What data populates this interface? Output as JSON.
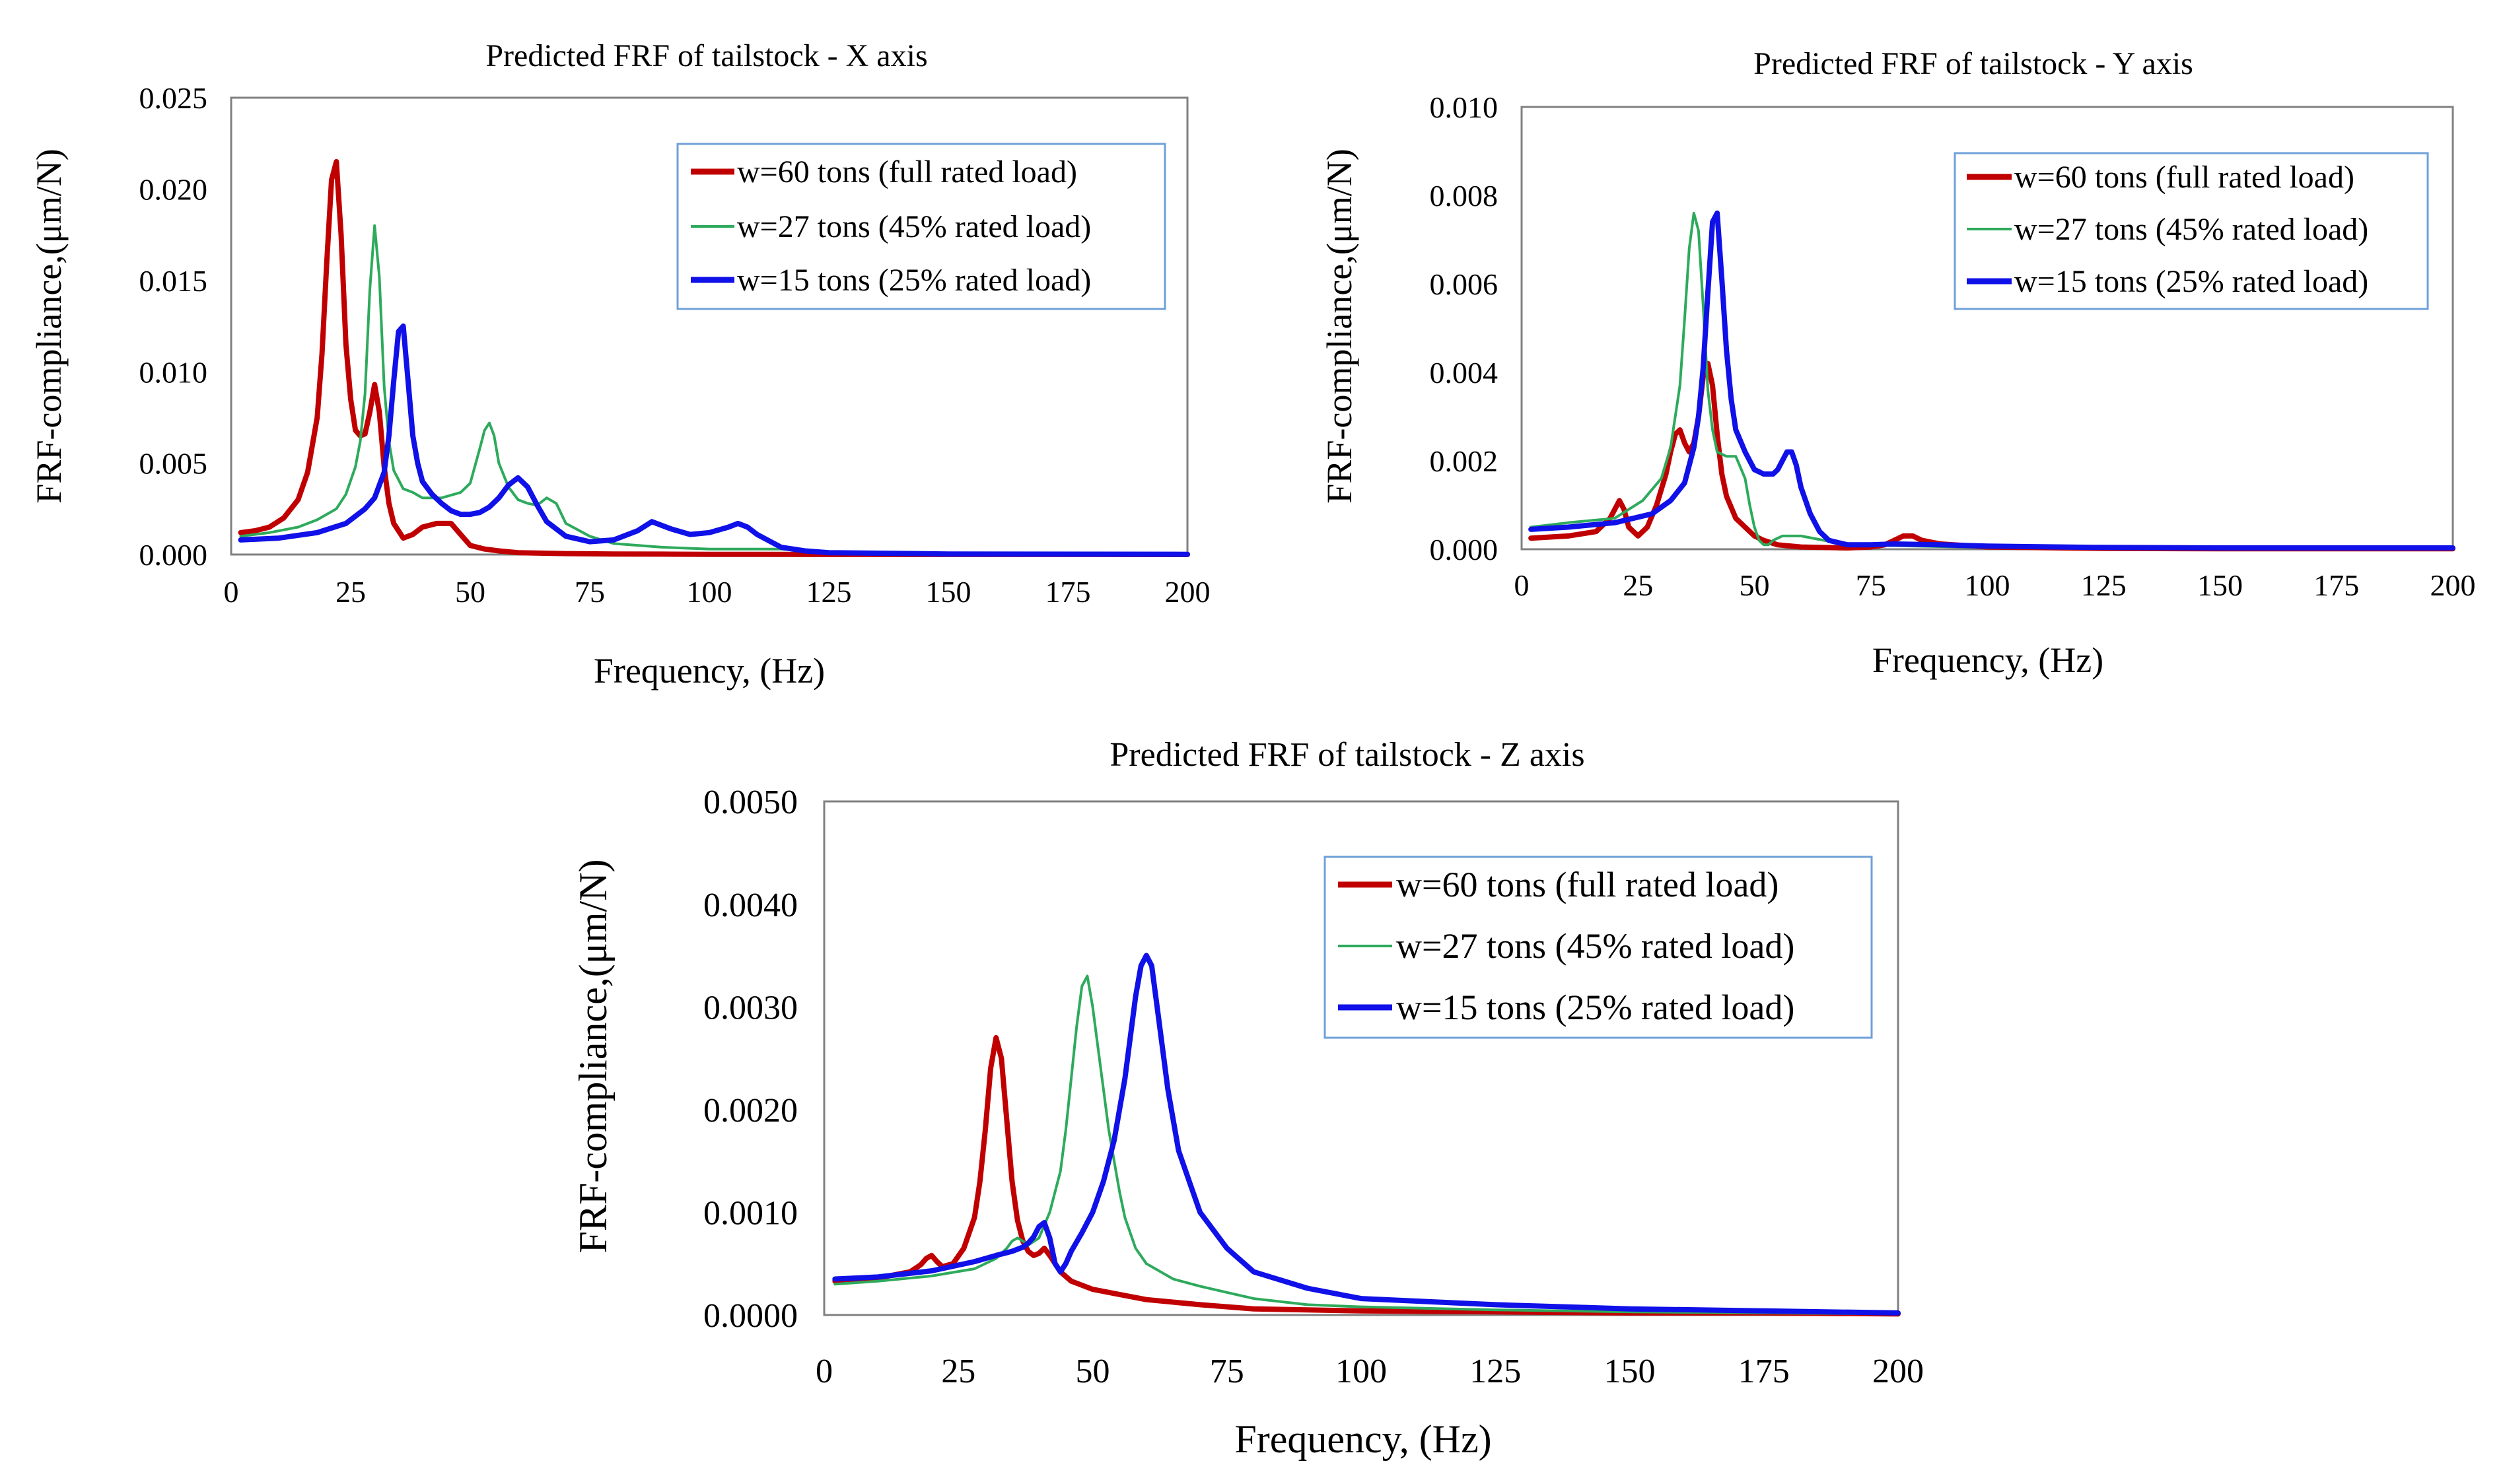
{
  "chart_data": [
    {
      "id": "x",
      "type": "line",
      "title": "Predicted FRF of  tailstock - X axis",
      "xlabel": "Frequency, (Hz)",
      "ylabel": "FRF-compliance,(μm/N)",
      "xlim": [
        0,
        200
      ],
      "ylim": [
        0,
        0.025
      ],
      "xticks": [
        0,
        25,
        50,
        75,
        100,
        125,
        150,
        175,
        200
      ],
      "xtick_labels": [
        "0",
        "25",
        "50",
        "75",
        "100",
        "125",
        "150",
        "175",
        "200"
      ],
      "yticks": [
        0,
        0.005,
        0.01,
        0.015,
        0.02,
        0.025
      ],
      "ytick_labels": [
        "0.000",
        "0.005",
        "0.010",
        "0.015",
        "0.020",
        "0.025"
      ],
      "grid": false,
      "legend_position": "top-right",
      "series": [
        {
          "name": "w=60 tons (full rated load)",
          "color": "#C00000",
          "width": "thick",
          "x": [
            2,
            5,
            8,
            11,
            14,
            16,
            18,
            19,
            20,
            21,
            22,
            23,
            24,
            25,
            26,
            27,
            28,
            29,
            30,
            31,
            32,
            33,
            34,
            36,
            38,
            40,
            43,
            46,
            48,
            50,
            53,
            56,
            60,
            70,
            80,
            90,
            100,
            125,
            150,
            175,
            200
          ],
          "y": [
            0.0012,
            0.0013,
            0.0015,
            0.002,
            0.003,
            0.0045,
            0.0075,
            0.011,
            0.016,
            0.0205,
            0.0215,
            0.0175,
            0.0115,
            0.0085,
            0.0068,
            0.0065,
            0.0066,
            0.0078,
            0.0093,
            0.0078,
            0.0048,
            0.0028,
            0.0017,
            0.0009,
            0.0011,
            0.0015,
            0.0017,
            0.0017,
            0.0011,
            0.0005,
            0.0003,
            0.0002,
            0.0001,
            5e-05,
            3e-05,
            2e-05,
            1e-05,
            5e-06,
            3e-06,
            2e-06,
            1e-06
          ]
        },
        {
          "name": "w=27 tons (45% rated load)",
          "color": "#2EAA5C",
          "width": "thin",
          "x": [
            2,
            8,
            14,
            18,
            22,
            24,
            26,
            27,
            28,
            29,
            30,
            31,
            32,
            33,
            34,
            36,
            38,
            40,
            44,
            48,
            50,
            52,
            53,
            54,
            55,
            56,
            58,
            60,
            62,
            64,
            66,
            68,
            70,
            75,
            80,
            90,
            100,
            110,
            115,
            120,
            125,
            150,
            200
          ],
          "y": [
            0.001,
            0.0012,
            0.0015,
            0.0019,
            0.0025,
            0.0033,
            0.0048,
            0.0062,
            0.0088,
            0.0145,
            0.018,
            0.0152,
            0.0092,
            0.0062,
            0.0046,
            0.0036,
            0.0034,
            0.0031,
            0.0031,
            0.0034,
            0.0039,
            0.0058,
            0.0068,
            0.0072,
            0.0065,
            0.005,
            0.0037,
            0.003,
            0.0028,
            0.0027,
            0.0031,
            0.0028,
            0.0017,
            0.001,
            0.0006,
            0.0004,
            0.0003,
            0.0003,
            0.0003,
            0.0002,
            0.0001,
            3e-05,
            1e-05
          ]
        },
        {
          "name": "w=15 tons (25% rated load)",
          "color": "#1010E8",
          "width": "thick",
          "x": [
            2,
            10,
            18,
            24,
            28,
            30,
            32,
            33,
            34,
            35,
            36,
            37,
            38,
            39,
            40,
            42,
            44,
            46,
            48,
            50,
            52,
            54,
            56,
            58,
            60,
            62,
            64,
            66,
            70,
            75,
            80,
            85,
            88,
            92,
            96,
            100,
            104,
            106,
            108,
            110,
            115,
            120,
            125,
            150,
            200
          ],
          "y": [
            0.0008,
            0.0009,
            0.0012,
            0.0017,
            0.0025,
            0.0031,
            0.0045,
            0.0065,
            0.0095,
            0.0122,
            0.0125,
            0.0095,
            0.0065,
            0.005,
            0.004,
            0.0033,
            0.0028,
            0.0024,
            0.0022,
            0.0022,
            0.0023,
            0.0026,
            0.0031,
            0.0038,
            0.0042,
            0.0037,
            0.0027,
            0.0018,
            0.001,
            0.0007,
            0.0008,
            0.0013,
            0.0018,
            0.0014,
            0.0011,
            0.0012,
            0.0015,
            0.0017,
            0.0015,
            0.0011,
            0.0004,
            0.0002,
            0.0001,
            3e-05,
            1e-05
          ]
        }
      ]
    },
    {
      "id": "y",
      "type": "line",
      "title": "Predicted FRF of  tailstock - Y axis",
      "xlabel": "Frequency, (Hz)",
      "ylabel": "FRF-compliance,(μm/N)",
      "xlim": [
        0,
        200
      ],
      "ylim": [
        0,
        0.01
      ],
      "xticks": [
        0,
        25,
        50,
        75,
        100,
        125,
        150,
        175,
        200
      ],
      "xtick_labels": [
        "0",
        "25",
        "50",
        "75",
        "100",
        "125",
        "150",
        "175",
        "200"
      ],
      "yticks": [
        0,
        0.002,
        0.004,
        0.006,
        0.008,
        0.01
      ],
      "ytick_labels": [
        "0.000",
        "0.002",
        "0.004",
        "0.006",
        "0.008",
        "0.010"
      ],
      "grid": false,
      "legend_position": "top-right",
      "series": [
        {
          "name": "w=60 tons (full rated load)",
          "color": "#C00000",
          "width": "thick",
          "x": [
            2,
            10,
            16,
            19,
            20,
            21,
            22,
            23,
            24,
            25,
            27,
            29,
            31,
            32,
            33,
            34,
            35,
            36,
            37,
            38,
            39,
            40,
            41,
            42,
            43,
            44,
            46,
            48,
            50,
            52,
            55,
            60,
            70,
            75,
            78,
            80,
            82,
            84,
            86,
            90,
            100,
            125,
            150,
            200
          ],
          "y": [
            0.00025,
            0.0003,
            0.0004,
            0.0007,
            0.0009,
            0.0011,
            0.0009,
            0.0005,
            0.0004,
            0.0003,
            0.0005,
            0.001,
            0.0017,
            0.0022,
            0.0026,
            0.0027,
            0.0024,
            0.0022,
            0.0024,
            0.003,
            0.0039,
            0.0042,
            0.0037,
            0.0026,
            0.0017,
            0.0012,
            0.0007,
            0.0005,
            0.0003,
            0.0002,
            0.0001,
            5e-05,
            3e-05,
            5e-05,
            0.0001,
            0.0002,
            0.0003,
            0.0003,
            0.0002,
            0.00012,
            5e-05,
            2e-05,
            1e-05,
            1e-05
          ]
        },
        {
          "name": "w=27 tons (45% rated load)",
          "color": "#2EAA5C",
          "width": "thin",
          "x": [
            2,
            10,
            20,
            26,
            30,
            32,
            34,
            35,
            36,
            37,
            38,
            39,
            40,
            41,
            42,
            44,
            46,
            48,
            49,
            50,
            51,
            52,
            53,
            54,
            56,
            60,
            65,
            70,
            80,
            90,
            100,
            125,
            200
          ],
          "y": [
            0.0005,
            0.0006,
            0.0007,
            0.0011,
            0.0016,
            0.0023,
            0.0037,
            0.0052,
            0.0068,
            0.0076,
            0.0072,
            0.0055,
            0.0036,
            0.0027,
            0.0022,
            0.0021,
            0.0021,
            0.0016,
            0.001,
            0.0005,
            0.0002,
            0.0001,
            0.0001,
            0.0002,
            0.0003,
            0.0003,
            0.0002,
            0.0001,
            8e-05,
            6e-05,
            4e-05,
            3e-05,
            3e-05
          ]
        },
        {
          "name": "w=15 tons (25% rated load)",
          "color": "#1010E8",
          "width": "thick",
          "x": [
            2,
            10,
            20,
            28,
            32,
            35,
            37,
            38,
            39,
            40,
            41,
            42,
            43,
            44,
            45,
            46,
            48,
            50,
            52,
            54,
            55,
            56,
            57,
            58,
            59,
            60,
            62,
            64,
            66,
            70,
            75,
            80,
            90,
            100,
            125,
            150,
            200
          ],
          "y": [
            0.00045,
            0.0005,
            0.0006,
            0.0008,
            0.0011,
            0.0015,
            0.0023,
            0.003,
            0.0041,
            0.0058,
            0.0074,
            0.0076,
            0.0061,
            0.0045,
            0.0034,
            0.0027,
            0.0022,
            0.0018,
            0.0017,
            0.0017,
            0.0018,
            0.002,
            0.0022,
            0.0022,
            0.0019,
            0.0014,
            0.0008,
            0.0004,
            0.0002,
            0.0001,
            0.0001,
            0.00012,
            0.0001,
            7e-05,
            4e-05,
            3e-05,
            3e-05
          ]
        }
      ]
    },
    {
      "id": "z",
      "type": "line",
      "title": "Predicted FRF of  tailstock - Z axis",
      "xlabel": "Frequency, (Hz)",
      "ylabel": "FRF-compliance,(μm/N)",
      "xlim": [
        0,
        200
      ],
      "ylim": [
        0,
        0.005
      ],
      "xticks": [
        0,
        25,
        50,
        75,
        100,
        125,
        150,
        175,
        200
      ],
      "xtick_labels": [
        "0",
        "25",
        "50",
        "75",
        "100",
        "125",
        "150",
        "175",
        "200"
      ],
      "yticks": [
        0,
        0.001,
        0.002,
        0.003,
        0.004,
        0.005
      ],
      "ytick_labels": [
        "0.0000",
        "0.0010",
        "0.0020",
        "0.0030",
        "0.0040",
        "0.0050"
      ],
      "grid": false,
      "legend_position": "top-right",
      "series": [
        {
          "name": "w=60 tons (full rated load)",
          "color": "#C00000",
          "width": "thick",
          "x": [
            2,
            10,
            16,
            18,
            19,
            20,
            21,
            22,
            24,
            26,
            28,
            29,
            30,
            31,
            32,
            33,
            34,
            35,
            36,
            37,
            38,
            39,
            40,
            41,
            42,
            44,
            46,
            50,
            55,
            60,
            70,
            80,
            100,
            125,
            150,
            175,
            200
          ],
          "y": [
            0.00033,
            0.00036,
            0.00042,
            0.00049,
            0.00055,
            0.00058,
            0.00052,
            0.00047,
            0.0005,
            0.00065,
            0.00095,
            0.0013,
            0.0018,
            0.0024,
            0.0027,
            0.0025,
            0.0019,
            0.0013,
            0.00092,
            0.00072,
            0.00062,
            0.00058,
            0.0006,
            0.00065,
            0.00058,
            0.00042,
            0.00033,
            0.00025,
            0.0002,
            0.00015,
            0.0001,
            6e-05,
            4e-05,
            3e-05,
            2e-05,
            2e-05,
            1e-05
          ]
        },
        {
          "name": "w=27 tons (45% rated load)",
          "color": "#2EAA5C",
          "width": "thin",
          "x": [
            2,
            10,
            20,
            28,
            32,
            34,
            35,
            36,
            37,
            38,
            40,
            42,
            44,
            45,
            46,
            47,
            48,
            49,
            50,
            51,
            52,
            53,
            54,
            55,
            56,
            58,
            60,
            65,
            70,
            75,
            80,
            90,
            100,
            125,
            150,
            175,
            200
          ],
          "y": [
            0.0003,
            0.00033,
            0.00038,
            0.00045,
            0.00055,
            0.00065,
            0.00072,
            0.00075,
            0.00072,
            0.00068,
            0.00075,
            0.001,
            0.0014,
            0.0018,
            0.0023,
            0.0028,
            0.0032,
            0.0033,
            0.003,
            0.0026,
            0.0022,
            0.0018,
            0.0015,
            0.0012,
            0.00095,
            0.00065,
            0.0005,
            0.00035,
            0.00028,
            0.00022,
            0.00016,
            0.0001,
            8e-05,
            5e-05,
            3e-05,
            2e-05,
            1e-05
          ]
        },
        {
          "name": "w=15 tons (25% rated load)",
          "color": "#1010E8",
          "width": "thick",
          "x": [
            2,
            10,
            20,
            28,
            32,
            35,
            37,
            38,
            39,
            40,
            41,
            42,
            43,
            44,
            45,
            46,
            48,
            50,
            52,
            54,
            56,
            57,
            58,
            59,
            60,
            61,
            62,
            63,
            64,
            66,
            68,
            70,
            75,
            80,
            90,
            100,
            125,
            150,
            175,
            200
          ],
          "y": [
            0.00035,
            0.00037,
            0.00043,
            0.00052,
            0.00058,
            0.00062,
            0.00066,
            0.0007,
            0.00076,
            0.00086,
            0.0009,
            0.00075,
            0.0005,
            0.00042,
            0.0005,
            0.00062,
            0.0008,
            0.001,
            0.0013,
            0.0017,
            0.0023,
            0.0027,
            0.0031,
            0.0034,
            0.0035,
            0.0034,
            0.003,
            0.0026,
            0.0022,
            0.0016,
            0.0013,
            0.001,
            0.00065,
            0.00042,
            0.00026,
            0.00016,
            0.0001,
            6e-05,
            4e-05,
            2e-05
          ]
        }
      ]
    }
  ]
}
